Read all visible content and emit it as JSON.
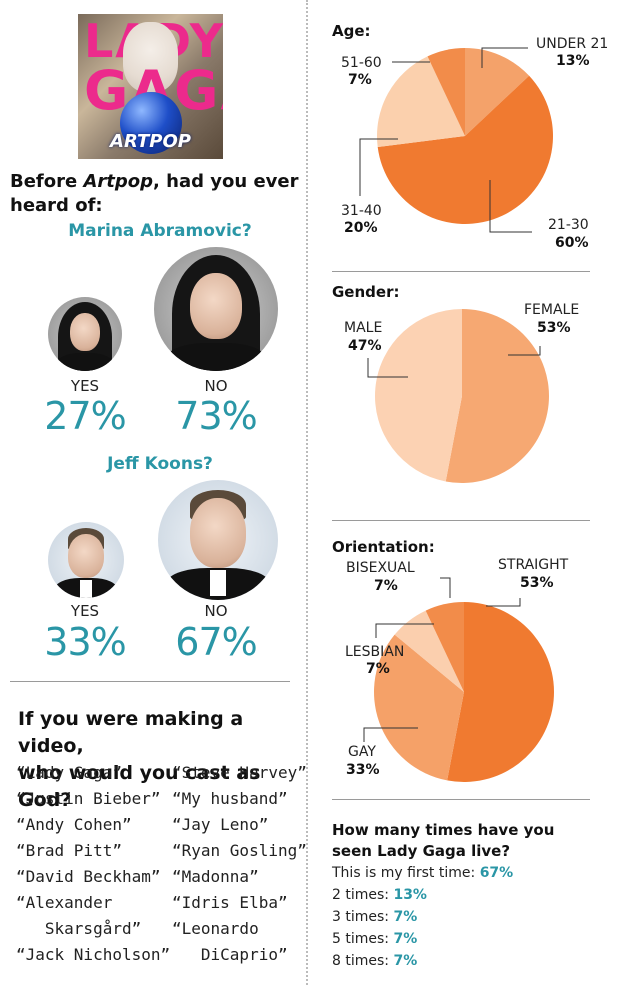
{
  "album": {
    "brand_line1": "LADY",
    "brand_line2": "GAGA",
    "album_title": "ARTPOP"
  },
  "left": {
    "question_html": [
      "Before ",
      "Artpop",
      ", had you ever heard of:"
    ],
    "marina": {
      "name": "Marina Abramovic?",
      "yes_label": "YES",
      "yes_pct": "27%",
      "no_label": "NO",
      "no_pct": "73%"
    },
    "koons": {
      "name": "Jeff Koons?",
      "yes_label": "YES",
      "yes_pct": "33%",
      "no_label": "NO",
      "no_pct": "67%"
    },
    "video": {
      "title_line1": "If you were making a video,",
      "title_line2": "who would you cast as God?",
      "col1": [
        "“Lady Gaga”",
        "“Justin Bieber”",
        "“Andy Cohen”",
        "“Brad Pitt”",
        "“David Beckham”",
        "“Alexander",
        "   Skarsgård”",
        "“Jack Nicholson”"
      ],
      "col2": [
        "“Steve Harvey”",
        "“My husband”",
        "“Jay Leno”",
        "“Ryan Gosling”",
        "“Madonna”",
        "“Idris Elba”",
        "“Leonardo",
        "   DiCaprio”"
      ]
    }
  },
  "chart_data": [
    {
      "type": "pie",
      "title": "Age:",
      "categories": [
        "UNDER 21",
        "21-30",
        "31-40",
        "51-60"
      ],
      "values": [
        13,
        60,
        20,
        7
      ],
      "labels_pct": [
        "13%",
        "60%",
        "20%",
        "7%"
      ],
      "colors": [
        "#f4a26a",
        "#f07a30",
        "#fbd0ad",
        "#f28c4a"
      ]
    },
    {
      "type": "pie",
      "title": "Gender:",
      "categories": [
        "FEMALE",
        "MALE"
      ],
      "values": [
        53,
        47
      ],
      "labels_pct": [
        "53%",
        "47%"
      ],
      "colors": [
        "#f6a872",
        "#fcd2b3"
      ]
    },
    {
      "type": "pie",
      "title": "Orientation:",
      "categories": [
        "STRAIGHT",
        "GAY",
        "LESBIAN",
        "BISEXUAL"
      ],
      "values": [
        53,
        33,
        7,
        7
      ],
      "labels_pct": [
        "53%",
        "33%",
        "7%",
        "7%"
      ],
      "colors": [
        "#f07a30",
        "#f5a168",
        "#fbcfae",
        "#f28c4a"
      ]
    }
  ],
  "live": {
    "title_line1": "How many times have you",
    "title_line2": "seen Lady Gaga live?",
    "rows": [
      {
        "label": "This is my first time:",
        "value": "67%"
      },
      {
        "label": "2 times:",
        "value": "13%"
      },
      {
        "label": "3 times:",
        "value": "7%"
      },
      {
        "label": "5 times:",
        "value": "7%"
      },
      {
        "label": "8 times:",
        "value": "7%"
      }
    ]
  }
}
